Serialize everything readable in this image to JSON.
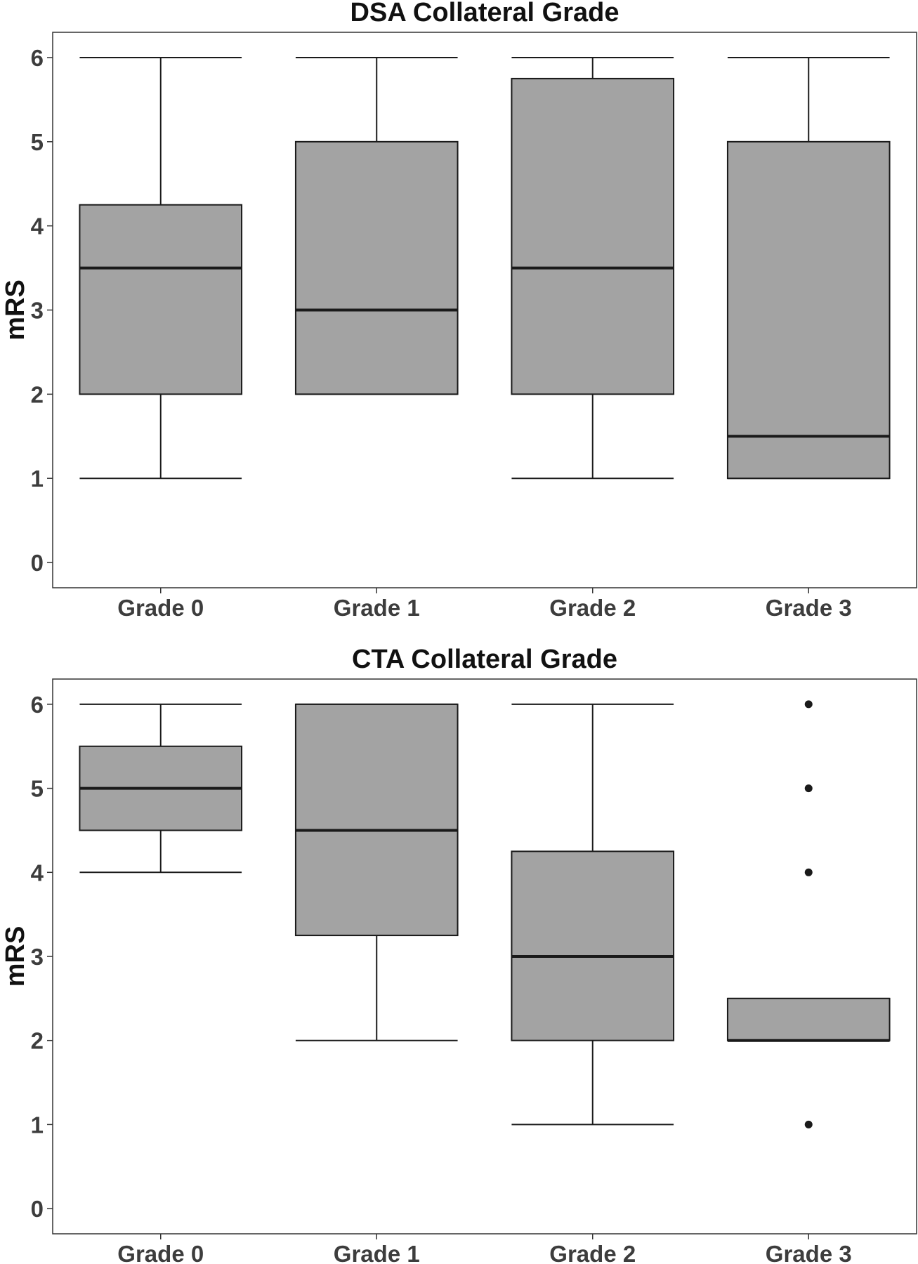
{
  "chart_data": [
    {
      "type": "boxplot",
      "title": "DSA Collateral Grade",
      "xlabel": "",
      "ylabel": "mRS",
      "ylim": [
        -0.3,
        6.3
      ],
      "yticks": [
        0,
        1,
        2,
        3,
        4,
        5,
        6
      ],
      "grid": false,
      "categories": [
        "Grade 0",
        "Grade 1",
        "Grade 2",
        "Grade 3"
      ],
      "boxes": [
        {
          "whisker_low": 1,
          "q1": 2,
          "median": 3.5,
          "q3": 4.25,
          "whisker_high": 6,
          "outliers": []
        },
        {
          "whisker_low": 2,
          "q1": 2,
          "median": 3,
          "q3": 5,
          "whisker_high": 6,
          "outliers": []
        },
        {
          "whisker_low": 1,
          "q1": 2,
          "median": 3.5,
          "q3": 5.75,
          "whisker_high": 6,
          "outliers": []
        },
        {
          "whisker_low": 1,
          "q1": 1,
          "median": 1.5,
          "q3": 5,
          "whisker_high": 6,
          "outliers": []
        }
      ],
      "box_color": "#a3a3a3"
    },
    {
      "type": "boxplot",
      "title": "CTA Collateral Grade",
      "xlabel": "",
      "ylabel": "mRS",
      "ylim": [
        -0.3,
        6.3
      ],
      "yticks": [
        0,
        1,
        2,
        3,
        4,
        5,
        6
      ],
      "grid": false,
      "categories": [
        "Grade 0",
        "Grade 1",
        "Grade 2",
        "Grade 3"
      ],
      "boxes": [
        {
          "whisker_low": 4,
          "q1": 4.5,
          "median": 5,
          "q3": 5.5,
          "whisker_high": 6,
          "outliers": []
        },
        {
          "whisker_low": 2,
          "q1": 3.25,
          "median": 4.5,
          "q3": 6,
          "whisker_high": 6,
          "outliers": []
        },
        {
          "whisker_low": 1,
          "q1": 2,
          "median": 3,
          "q3": 4.25,
          "whisker_high": 6,
          "outliers": []
        },
        {
          "whisker_low": 2,
          "q1": 2,
          "median": 2,
          "q3": 2.5,
          "whisker_high": 2.5,
          "outliers": [
            1,
            4,
            5,
            6
          ]
        }
      ],
      "box_color": "#a3a3a3"
    }
  ]
}
